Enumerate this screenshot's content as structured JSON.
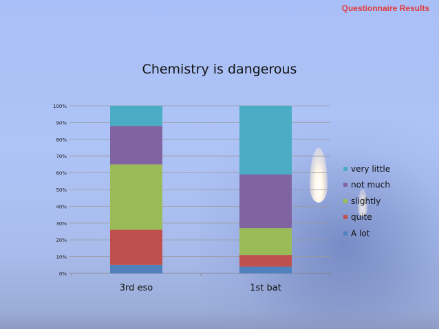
{
  "header": {
    "label": "Questionnaire Results"
  },
  "chart_data": {
    "type": "bar",
    "stacked": true,
    "title": "Chemistry is dangerous",
    "categories": [
      "3rd eso",
      "1st bat"
    ],
    "y_ticks": [
      "0%",
      "10%",
      "20%",
      "30%",
      "40%",
      "50%",
      "60%",
      "70%",
      "80%",
      "90%",
      "100%"
    ],
    "ylim": [
      0,
      100
    ],
    "grid": true,
    "legend_position": "right",
    "series": [
      {
        "name": "A lot",
        "color": "#4f81bd",
        "values": [
          5,
          4
        ]
      },
      {
        "name": "quite",
        "color": "#c0504d",
        "values": [
          21,
          7
        ]
      },
      {
        "name": "slightly",
        "color": "#9bbb59",
        "values": [
          39,
          16
        ]
      },
      {
        "name": "not much",
        "color": "#8064a2",
        "values": [
          23,
          32
        ]
      },
      {
        "name": "very little",
        "color": "#4bacc6",
        "values": [
          12,
          41
        ]
      }
    ]
  }
}
